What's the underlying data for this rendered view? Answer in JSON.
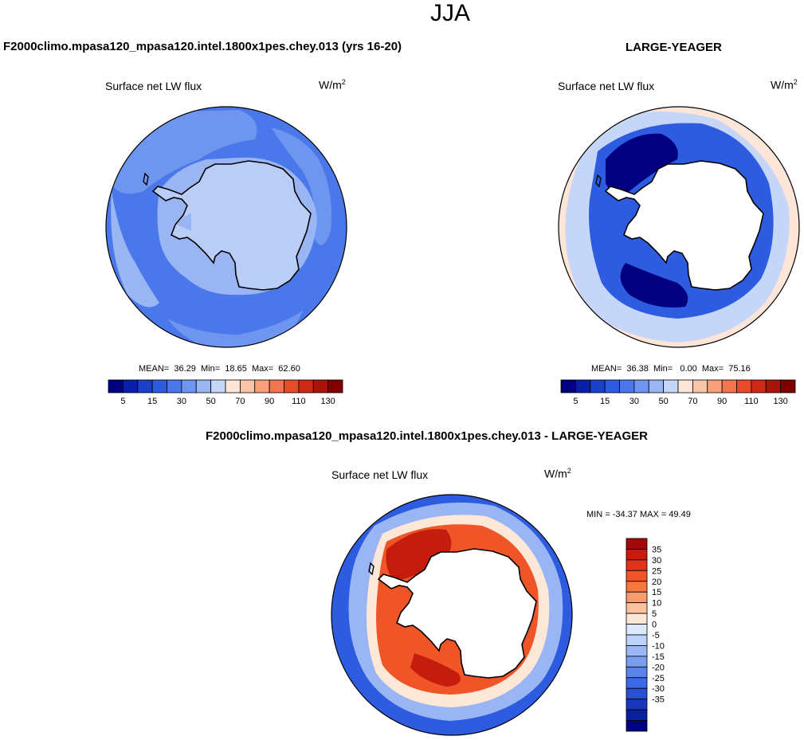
{
  "page": {
    "title": "JJA"
  },
  "panels": [
    {
      "subtitle": "F2000climo.mpasa120_mpasa120.intel.1800x1pes.chey.013 (yrs 16-20)",
      "variable": "Surface net LW flux",
      "unit_base": "W/m",
      "unit_exp": "2",
      "stats": {
        "mean_label": "MEAN=",
        "mean": "36.29",
        "min_label": "Min=",
        "min": "18.65",
        "max_label": "Max=",
        "max": "62.60"
      }
    },
    {
      "subtitle": "LARGE-YEAGER",
      "variable": "Surface net LW flux",
      "unit_base": "W/m",
      "unit_exp": "2",
      "stats": {
        "mean_label": "MEAN=",
        "mean": "36.38",
        "min_label": "Min=",
        "min": "0.00",
        "max_label": "Max=",
        "max": "75.16"
      }
    },
    {
      "subtitle": "F2000climo.mpasa120_mpasa120.intel.1800x1pes.chey.013 - LARGE-YEAGER",
      "variable": "Surface net LW flux",
      "unit_base": "W/m",
      "unit_exp": "2",
      "minmax": "MIN = -34.37 MAX =  49.49"
    }
  ],
  "colorbar_horizontal": {
    "colors": [
      "#000080",
      "#0a1fa8",
      "#1a3fc8",
      "#2e5ce0",
      "#4a78ea",
      "#6e95f0",
      "#9ab5f4",
      "#c6d6f8",
      "#fde6d8",
      "#fbc6a8",
      "#f8a07a",
      "#f37450",
      "#e84a2a",
      "#cc2a14",
      "#a8140a",
      "#800000"
    ],
    "tick_labels": [
      "5",
      "15",
      "30",
      "50",
      "70",
      "90",
      "110",
      "130"
    ]
  },
  "colorbar_vertical": {
    "colors": [
      "#a00a0a",
      "#c41d0d",
      "#e0341a",
      "#f05528",
      "#f57840",
      "#f89c6c",
      "#fbc2a0",
      "#fde8d8",
      "#ddeafc",
      "#bcd2f8",
      "#9bb8f4",
      "#7a9df0",
      "#5a84ea",
      "#3b6ae2",
      "#2850d0",
      "#1838b8",
      "#0a20a0",
      "#000080"
    ],
    "tick_labels": [
      "35",
      "30",
      "25",
      "20",
      "15",
      "10",
      "5",
      "0",
      "-5",
      "-10",
      "-15",
      "-20",
      "-25",
      "-30",
      "-35"
    ]
  },
  "map_colors": {
    "model_ocean": "#4a78ea",
    "model_ocean_light": "#6e95f0",
    "model_ice": "#9ab5f4",
    "model_land": "#b9cdf6",
    "obs_far": "#fde6d8",
    "obs_mid": "#c6d6f8",
    "obs_ring": "#2e5ce0",
    "obs_ring_dark": "#0a1fa8",
    "obs_core": "#000080",
    "obs_land": "#ffffff",
    "diff_far": "#2e5ce0",
    "diff_mid": "#9ab5f4",
    "diff_zero": "#fde8d8",
    "diff_ring": "#f05528",
    "diff_core": "#c41d0d",
    "diff_land": "#ffffff",
    "coastline": "#000000"
  }
}
